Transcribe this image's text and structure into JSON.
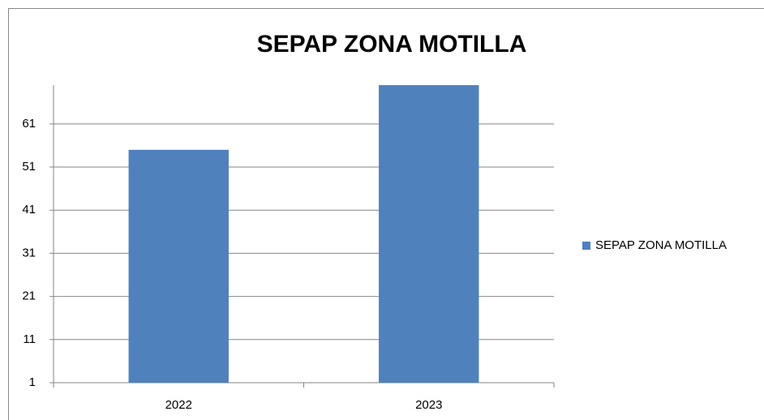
{
  "chart_data": {
    "type": "bar",
    "title": "SEPAP ZONA MOTILLA",
    "categories": [
      "2022",
      "2023"
    ],
    "series": [
      {
        "name": "SEPAP ZONA MOTILLA",
        "color": "#4f81bd",
        "values": [
          55,
          70
        ]
      }
    ],
    "ylim": [
      1,
      70
    ],
    "yticks": [
      1,
      11,
      21,
      31,
      41,
      51,
      61
    ],
    "grid": true,
    "legend": "right"
  }
}
